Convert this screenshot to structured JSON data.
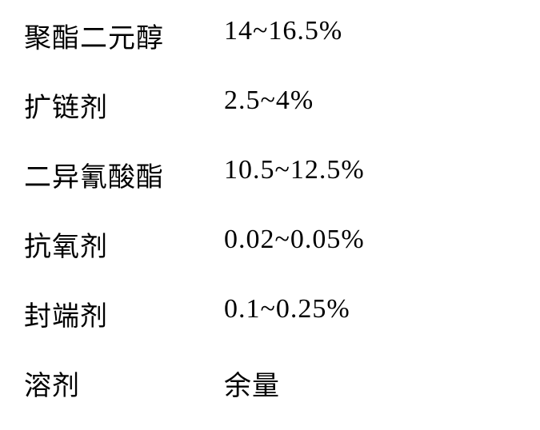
{
  "table": {
    "rows": [
      {
        "label": "聚酯二元醇",
        "value": "14~16.5%"
      },
      {
        "label": "扩链剂",
        "value": "2.5~4%"
      },
      {
        "label": "二异氰酸酯",
        "value": "10.5~12.5%"
      },
      {
        "label": "抗氧剂",
        "value": "0.02~0.05%"
      },
      {
        "label": "封端剂",
        "value": "0.1~0.25%"
      },
      {
        "label": "溶剂",
        "value": "余量"
      }
    ],
    "style": {
      "font_size": 34,
      "text_color": "#000000",
      "background_color": "#ffffff",
      "label_col_width": 250,
      "row_gap": 38
    }
  }
}
